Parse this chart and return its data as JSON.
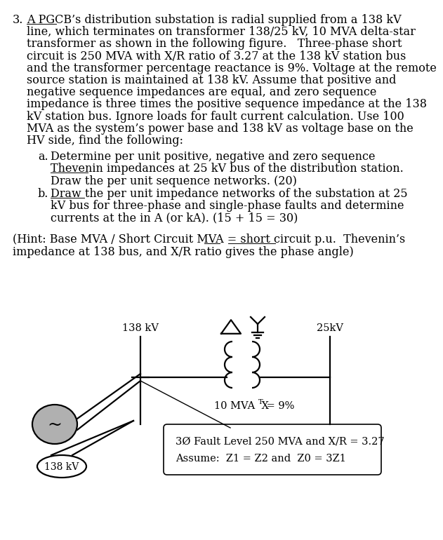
{
  "bg_color": "#ffffff",
  "text_color": "#000000",
  "font_family": "DejaVu Serif",
  "font_size_main": 11.5,
  "font_size_diagram": 10.5,
  "main_lines": [
    "A PGCB’s distribution substation is radial supplied from a 138 kV",
    "line, which terminates on transformer 138/25 kV, 10 MVA delta-star",
    "transformer as shown in the following figure.   Three-phase short",
    "circuit is 250 MVA with X/R ratio of 3.27 at the 138 kV station bus",
    "and the transformer percentage reactance is 9%. Voltage at the remote",
    "source station is maintained at 138 kV. Assume that positive and",
    "negative sequence impedances are equal, and zero sequence",
    "impedance is three times the positive sequence impedance at the 138",
    "kV station bus. Ignore loads for fault current calculation. Use 100",
    "MVA as the system’s power base and 138 kV as voltage base on the",
    "HV side, find the following:"
  ],
  "item_a_lines": [
    "Determine per unit positive, negative and zero sequence",
    "Thevenin impedances at 25 kV bus of the distribution station.",
    "Draw the per unit sequence networks. (20)"
  ],
  "item_b_lines": [
    "Draw the per unit impedance networks of the substation at 25",
    "kV bus for three-phase and single-phase faults and determine",
    "currents at the in A (or kA). (15 + 15 = 30)"
  ],
  "hint_lines": [
    "(Hint: Base MVA / Short Circuit MVA = short circuit p.u.  Thevenin’s",
    "impedance at 138 bus, and X/R ratio gives the phase angle)"
  ],
  "box_line1": "3Ø Fault Level 250 MVA and X/R = 3.27",
  "box_line2": "Assume:  Z1 = Z2 and  Z0 = 3Z1",
  "label_138kv": "138 kV",
  "label_25kv": "25kV",
  "label_xT": "10 MVA  X",
  "label_T_sub": "T",
  "label_9pct": " = 9%",
  "label_138kv_src": "138 kV"
}
